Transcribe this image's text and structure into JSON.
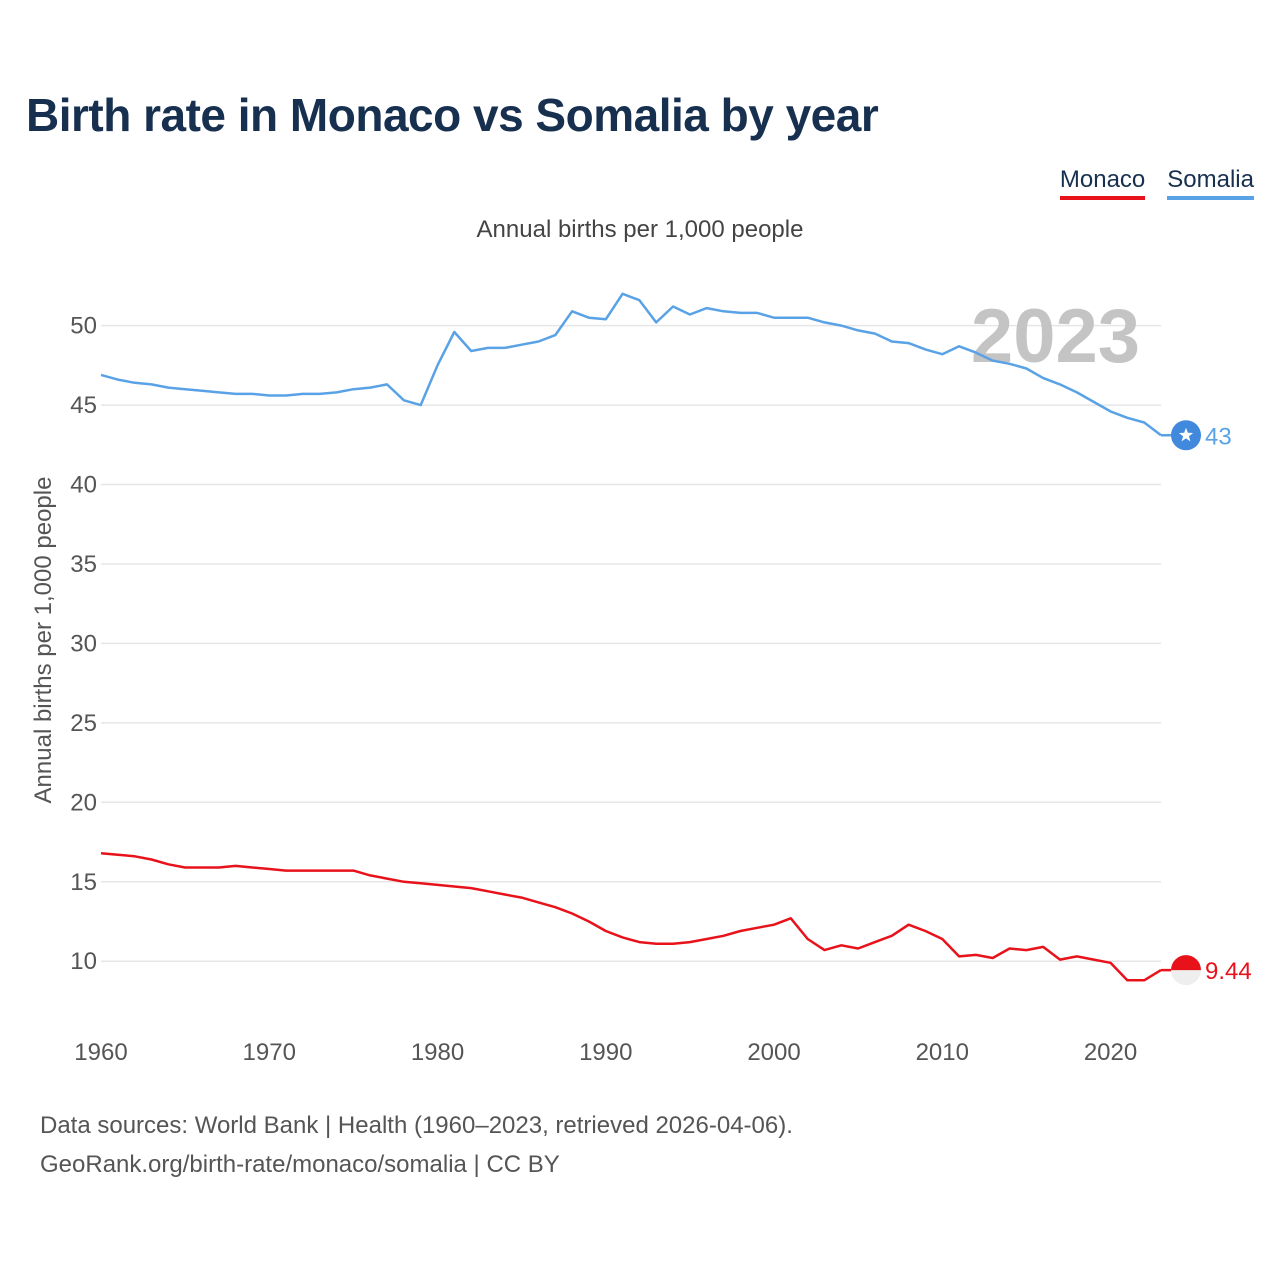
{
  "title": "Birth rate in Monaco vs Somalia by year",
  "subtitle": "Annual births per 1,000 people",
  "source_line1": "Data sources: World Bank | Health (1960–2023, retrieved 2026-04-06).",
  "source_line2": "GeoRank.org/birth-rate/monaco/somalia | CC BY",
  "legend": [
    {
      "label": "Monaco",
      "color": "#e8121b"
    },
    {
      "label": "Somalia",
      "color": "#5aa2e6"
    }
  ],
  "chart_data": {
    "type": "line",
    "title": "Birth rate in Monaco vs Somalia by year",
    "ylabel": "Annual births per 1,000 people",
    "xlabel": "",
    "year_label": "2023",
    "xlim": [
      1960,
      2023
    ],
    "ylim": [
      6.3,
      53.5
    ],
    "x_ticks": [
      1960,
      1970,
      1980,
      1990,
      2000,
      2010,
      2020
    ],
    "y_ticks": [
      10,
      15,
      20,
      25,
      30,
      35,
      40,
      45,
      50
    ],
    "x": [
      1960,
      1961,
      1962,
      1963,
      1964,
      1965,
      1966,
      1967,
      1968,
      1969,
      1970,
      1971,
      1972,
      1973,
      1974,
      1975,
      1976,
      1977,
      1978,
      1979,
      1980,
      1981,
      1982,
      1983,
      1984,
      1985,
      1986,
      1987,
      1988,
      1989,
      1990,
      1991,
      1992,
      1993,
      1994,
      1995,
      1996,
      1997,
      1998,
      1999,
      2000,
      2001,
      2002,
      2003,
      2004,
      2005,
      2006,
      2007,
      2008,
      2009,
      2010,
      2011,
      2012,
      2013,
      2014,
      2015,
      2016,
      2017,
      2018,
      2019,
      2020,
      2021,
      2022,
      2023
    ],
    "series": [
      {
        "name": "Somalia",
        "color": "#5aa2e6",
        "end_label": "43",
        "values": [
          46.9,
          46.6,
          46.4,
          46.3,
          46.1,
          46.0,
          45.9,
          45.8,
          45.7,
          45.7,
          45.6,
          45.6,
          45.7,
          45.7,
          45.8,
          46.0,
          46.1,
          46.3,
          45.3,
          45.0,
          47.5,
          49.6,
          48.4,
          48.6,
          48.6,
          48.8,
          49.0,
          49.4,
          50.9,
          50.5,
          50.4,
          52.0,
          51.6,
          50.2,
          51.2,
          50.7,
          51.1,
          50.9,
          50.8,
          50.8,
          50.5,
          50.5,
          50.5,
          50.2,
          50.0,
          49.7,
          49.5,
          49.0,
          48.9,
          48.5,
          48.2,
          48.7,
          48.3,
          47.8,
          47.6,
          47.3,
          46.7,
          46.3,
          45.8,
          45.2,
          44.6,
          44.2,
          43.9,
          43.1
        ]
      },
      {
        "name": "Monaco",
        "color": "#e8121b",
        "end_label": "9.44",
        "values": [
          16.8,
          16.7,
          16.6,
          16.4,
          16.1,
          15.9,
          15.9,
          15.9,
          16.0,
          15.9,
          15.8,
          15.7,
          15.7,
          15.7,
          15.7,
          15.7,
          15.4,
          15.2,
          15.0,
          14.9,
          14.8,
          14.7,
          14.6,
          14.4,
          14.2,
          14.0,
          13.7,
          13.4,
          13.0,
          12.5,
          11.9,
          11.5,
          11.2,
          11.1,
          11.1,
          11.2,
          11.4,
          11.6,
          11.9,
          12.1,
          12.3,
          12.7,
          11.4,
          10.7,
          11.0,
          10.8,
          11.2,
          11.6,
          12.3,
          11.9,
          11.4,
          10.3,
          10.4,
          10.2,
          10.8,
          10.7,
          10.9,
          10.1,
          10.3,
          10.1,
          9.9,
          8.8,
          8.8,
          9.44
        ]
      }
    ]
  }
}
